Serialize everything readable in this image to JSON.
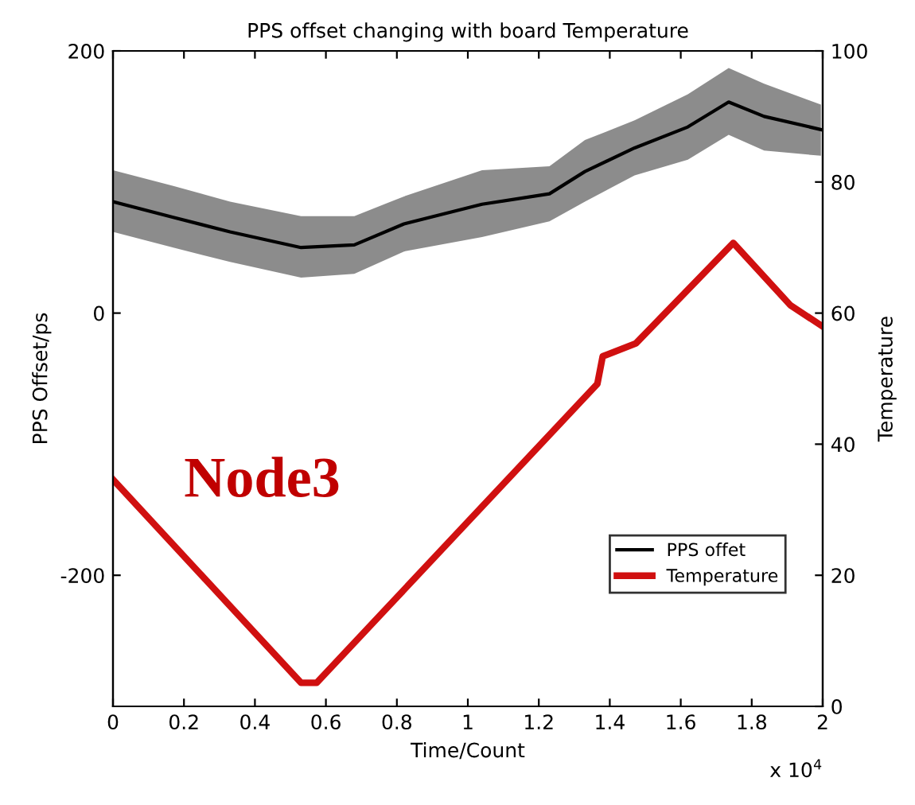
{
  "chart_data": {
    "type": "line",
    "title": "PPS offset changing with board Temperature",
    "xlabel": "Time/Count",
    "ylabel": "PPS Offset/ps",
    "y2label": "Temperature",
    "annotations": [
      "Node3",
      "x 10$^{4}$"
    ],
    "series": [
      {
        "name": "PPS offet",
        "color": "#000000",
        "x": [
          0,
          0.17,
          0.33,
          0.53,
          0.68,
          0.82,
          1.04,
          1.23,
          1.33,
          1.47,
          1.62,
          1.735,
          1.835,
          1.995
        ],
        "values": [
          85,
          73,
          62,
          50,
          52,
          68,
          83,
          91,
          108,
          126,
          142,
          161,
          150,
          140
        ],
        "lower": [
          62,
          50,
          39,
          27,
          30,
          47,
          58,
          70,
          85,
          105,
          117,
          136,
          124,
          120
        ],
        "upper": [
          109,
          97,
          85,
          74,
          74,
          89,
          109,
          112,
          132,
          147,
          167,
          187,
          175,
          159
        ]
      },
      {
        "name": "Temperature",
        "color": "#d01010",
        "axis": "y2",
        "x": [
          0,
          0.53,
          0.574,
          1.365,
          1.38,
          1.474,
          1.748,
          1.909,
          1.996
        ],
        "values": [
          34.6,
          3.6,
          3.6,
          49.2,
          53.4,
          55.4,
          70.7,
          61.2,
          58.1
        ]
      }
    ],
    "xlim": [
      0,
      2
    ],
    "xticks": [
      0,
      0.2,
      0.4,
      0.6,
      0.8,
      1,
      1.2,
      1.4,
      1.6,
      1.8,
      2
    ],
    "ylim": [
      -300,
      200
    ],
    "yticks": [
      -200,
      0,
      200
    ],
    "y2lim": [
      0,
      100
    ],
    "y2ticks": [
      0,
      20,
      40,
      60,
      80,
      100
    ],
    "legend": "bottom right",
    "grid": false
  }
}
